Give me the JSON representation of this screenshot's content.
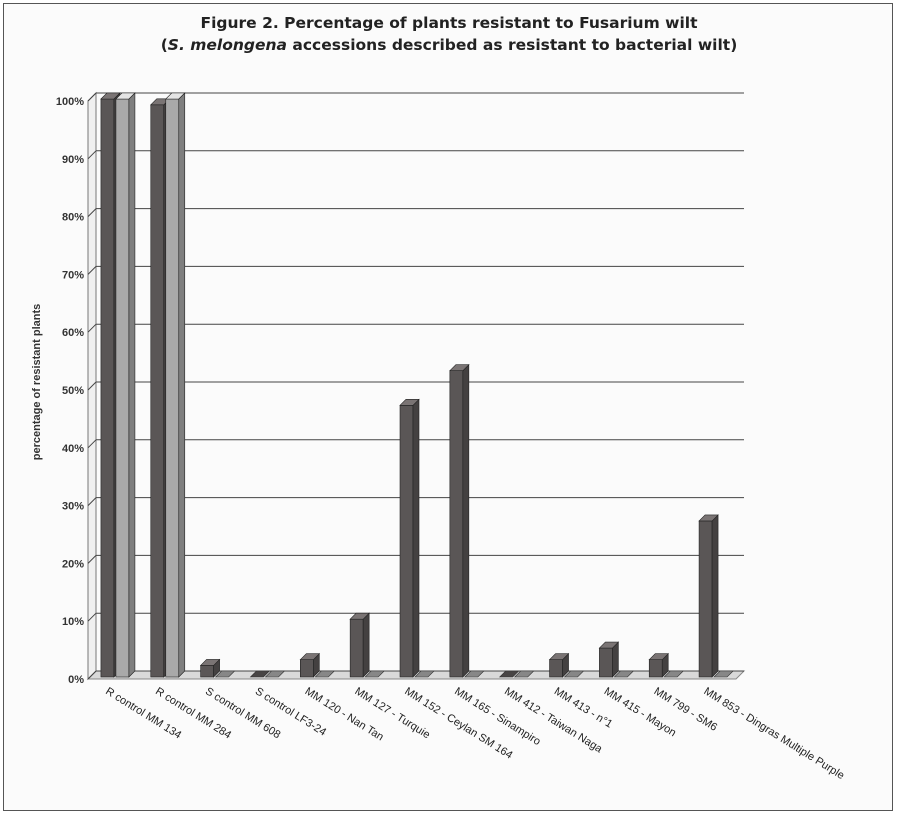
{
  "chart_data": {
    "type": "bar",
    "title": "Figure 2. Percentage of plants resistant to Fusarium wilt",
    "subtitle_italic": "S. melongena",
    "subtitle_rest": " accessions described as resistant to bacterial wilt)",
    "subtitle_open": "(",
    "ylabel": "percentage of resistant plants",
    "xlabel": "",
    "ylim": [
      0,
      100
    ],
    "y_ticks": [
      "0%",
      "10%",
      "20%",
      "30%",
      "40%",
      "50%",
      "60%",
      "70%",
      "80%",
      "90%",
      "100%"
    ],
    "grid": true,
    "categories": [
      "R control MM 134",
      "R control MM 284",
      "S control MM 608",
      "S control LF3-24",
      "MM 120 - Nan Tan",
      "MM 127 - Turquie",
      "MM 152 - Ceylan SM 164",
      "MM 165 - Sinampiro",
      "MM 412 - Taiwan Naga",
      "MM 413 - n°1",
      "MM 415 - Mayon",
      "MM 799 - SM6",
      "MM 853 - Dingras Multiple Purple"
    ],
    "series": [
      {
        "values": [
          100,
          99,
          2,
          0,
          3,
          10,
          47,
          53,
          0,
          3,
          5,
          3,
          27
        ]
      },
      {
        "values": [
          100,
          100,
          0,
          0,
          0,
          0,
          0,
          0,
          0,
          0,
          0,
          0,
          0
        ]
      }
    ],
    "colors": {
      "series1": "#5a5656",
      "series2": "#a9a9a9",
      "grid": "#444444",
      "floor": "#d9d9d9"
    }
  }
}
